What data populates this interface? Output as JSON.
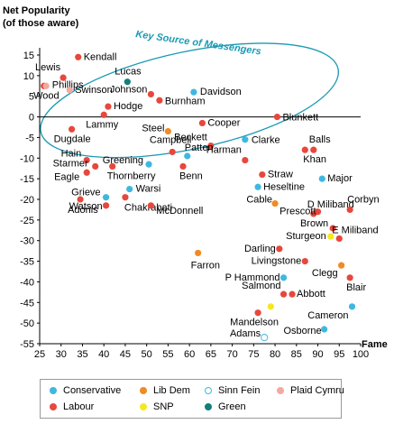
{
  "chart_data": {
    "type": "scatter",
    "title": "",
    "ylabel": "Net Popularity\n(of those aware)",
    "xlabel": "Fame",
    "xlim": [
      25,
      100
    ],
    "ylim": [
      -55,
      15
    ],
    "x_ticks": [
      25,
      30,
      35,
      40,
      45,
      50,
      55,
      60,
      65,
      70,
      75,
      80,
      85,
      90,
      95,
      100
    ],
    "y_ticks": [
      15,
      10,
      5,
      0,
      -5,
      -10,
      -15,
      -20,
      -25,
      -30,
      -35,
      -40,
      -45,
      -50,
      -55
    ],
    "annotation": "Key Source of Messengers",
    "colors": {
      "Conservative": "#3fb8e0",
      "Lib Dem": "#f28a22",
      "Sinn Fein": "#3fb8e0",
      "Plaid Cymru": "#f4a9a0",
      "Labour": "#e8473c",
      "SNP": "#f5e820",
      "Green": "#11807a",
      "ellipse": "#1a9ab3"
    },
    "legend": [
      {
        "name": "Conservative",
        "marker": "filled"
      },
      {
        "name": "Lib Dem",
        "marker": "filled"
      },
      {
        "name": "Sinn Fein",
        "marker": "hollow"
      },
      {
        "name": "Plaid Cymru",
        "marker": "filled"
      },
      {
        "name": "Labour",
        "marker": "filled"
      },
      {
        "name": "SNP",
        "marker": "filled"
      },
      {
        "name": "Green",
        "marker": "filled"
      }
    ],
    "points": [
      {
        "label": "Kendall",
        "x": 34,
        "y": 14.5,
        "party": "Labour"
      },
      {
        "label": "Lewis",
        "x": 30.5,
        "y": 9.5,
        "party": "Labour"
      },
      {
        "label": "Phillips",
        "x": 26,
        "y": 7.5,
        "party": "Labour"
      },
      {
        "label": "Swinson",
        "x": 32,
        "y": 6.5,
        "party": "Plaid Cymru"
      },
      {
        "label": "Wood",
        "x": 26.5,
        "y": 7.5,
        "party": "Plaid Cymru"
      },
      {
        "label": "Lucas",
        "x": 45.5,
        "y": 8.5,
        "party": "Green"
      },
      {
        "label": "Johnson",
        "x": 51,
        "y": 5.5,
        "party": "Labour"
      },
      {
        "label": "Davidson",
        "x": 61,
        "y": 6,
        "party": "Conservative"
      },
      {
        "label": "Burnham",
        "x": 53,
        "y": 4,
        "party": "Labour"
      },
      {
        "label": "Hodge",
        "x": 41,
        "y": 2.5,
        "party": "Labour"
      },
      {
        "label": "Lammy",
        "x": 40,
        "y": 0.5,
        "party": "Labour"
      },
      {
        "label": "Blunkett",
        "x": 80.5,
        "y": 0,
        "party": "Labour"
      },
      {
        "label": "Cooper",
        "x": 63,
        "y": -1.5,
        "party": "Labour"
      },
      {
        "label": "Steel",
        "x": 55,
        "y": -3.5,
        "party": "Lib Dem"
      },
      {
        "label": "Dugdale",
        "x": 32.5,
        "y": -3,
        "party": "Labour"
      },
      {
        "label": "Beckett",
        "x": 65,
        "y": -7,
        "party": "Labour"
      },
      {
        "label": "Clarke",
        "x": 73,
        "y": -5.5,
        "party": "Conservative"
      },
      {
        "label": "Balls",
        "x": 89,
        "y": -8,
        "party": "Labour"
      },
      {
        "label": "Campbell",
        "x": 56,
        "y": -8.5,
        "party": "Labour"
      },
      {
        "label": "Patten",
        "x": 59.5,
        "y": -9.5,
        "party": "Conservative"
      },
      {
        "label": "Harman",
        "x": 73,
        "y": -10.5,
        "party": "Labour"
      },
      {
        "label": "Khan",
        "x": 87,
        "y": -8,
        "party": "Labour"
      },
      {
        "label": "Hain",
        "x": 36,
        "y": -10.5,
        "party": "Labour"
      },
      {
        "label": "Greening",
        "x": 50.5,
        "y": -11.5,
        "party": "Conservative"
      },
      {
        "label": "Starmer",
        "x": 38,
        "y": -12,
        "party": "Labour"
      },
      {
        "label": "Benn",
        "x": 58.5,
        "y": -12,
        "party": "Labour"
      },
      {
        "label": "Eagle",
        "x": 36,
        "y": -13.5,
        "party": "Labour"
      },
      {
        "label": "Thornberry",
        "x": 42,
        "y": -12,
        "party": "Labour"
      },
      {
        "label": "Straw",
        "x": 77,
        "y": -14,
        "party": "Labour"
      },
      {
        "label": "Major",
        "x": 91,
        "y": -15,
        "party": "Conservative"
      },
      {
        "label": "Heseltine",
        "x": 76,
        "y": -17,
        "party": "Conservative"
      },
      {
        "label": "Warsi",
        "x": 46,
        "y": -17.5,
        "party": "Conservative"
      },
      {
        "label": "Grieve",
        "x": 40.5,
        "y": -19.5,
        "party": "Conservative"
      },
      {
        "label": "Chakrabati",
        "x": 45,
        "y": -19.5,
        "party": "Labour"
      },
      {
        "label": "Adonis",
        "x": 34.5,
        "y": -20,
        "party": "Labour"
      },
      {
        "label": "Watson",
        "x": 40.5,
        "y": -21.5,
        "party": "Labour"
      },
      {
        "label": "McDonnell",
        "x": 51,
        "y": -21.5,
        "party": "Labour"
      },
      {
        "label": "Cable",
        "x": 80,
        "y": -21,
        "party": "Lib Dem"
      },
      {
        "label": "D Miliband",
        "x": 89,
        "y": -23.5,
        "party": "Labour"
      },
      {
        "label": "Prescott",
        "x": 90,
        "y": -23,
        "party": "Labour"
      },
      {
        "label": "Corbyn",
        "x": 97.5,
        "y": -22.5,
        "party": "Labour"
      },
      {
        "label": "Brown",
        "x": 93.5,
        "y": -27,
        "party": "Labour"
      },
      {
        "label": "Sturgeon",
        "x": 93,
        "y": -29,
        "party": "SNP"
      },
      {
        "label": "Farron",
        "x": 62,
        "y": -33,
        "party": "Lib Dem"
      },
      {
        "label": "Darling",
        "x": 81,
        "y": -32,
        "party": "Labour"
      },
      {
        "label": "E Miliband",
        "x": 95,
        "y": -29.5,
        "party": "Labour"
      },
      {
        "label": "Livingstone",
        "x": 87,
        "y": -35,
        "party": "Labour"
      },
      {
        "label": "Clegg",
        "x": 95.5,
        "y": -36,
        "party": "Lib Dem"
      },
      {
        "label": "P Hammond",
        "x": 82,
        "y": -39,
        "party": "Conservative"
      },
      {
        "label": "Blair",
        "x": 97.5,
        "y": -39,
        "party": "Labour"
      },
      {
        "label": "Salmond",
        "x": 82,
        "y": -43,
        "party": "Labour"
      },
      {
        "label": "Abbott",
        "x": 84,
        "y": -43,
        "party": "Labour"
      },
      {
        "label": "Mandelson",
        "x": 76,
        "y": -47.5,
        "party": "Labour"
      },
      {
        "label": "Cameron",
        "x": 98,
        "y": -46,
        "party": "Conservative"
      },
      {
        "label": "SNP-mandelson-nearby",
        "x": 79,
        "y": -46,
        "party": "SNP"
      },
      {
        "label": "Adams",
        "x": 77.5,
        "y": -53.5,
        "party": "Sinn Fein"
      },
      {
        "label": "Osborne",
        "x": 91.5,
        "y": -51.5,
        "party": "Conservative"
      }
    ]
  }
}
